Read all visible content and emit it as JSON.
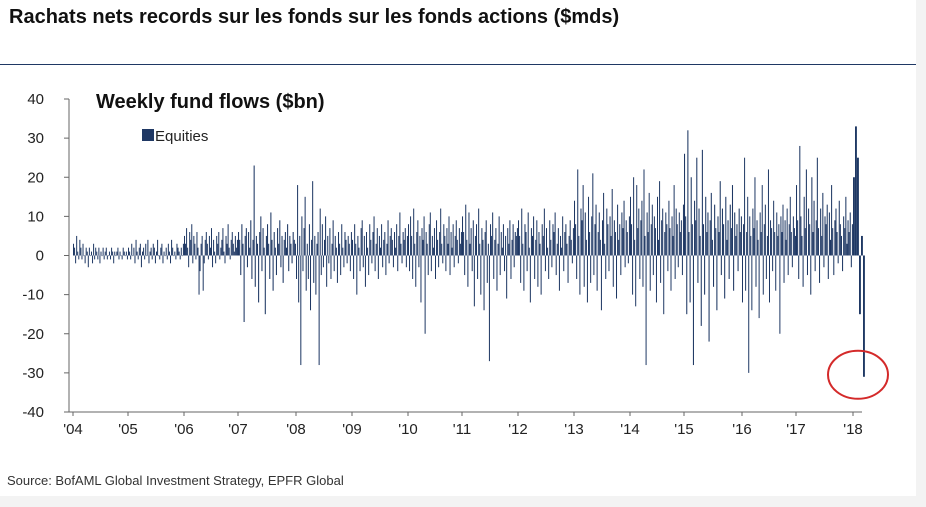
{
  "header": {
    "title": "Rachats nets records sur les fonds sur les fonds actions ($mds)"
  },
  "footer": {
    "source": "Source: BofAML Global Investment Strategy, EPFR Global"
  },
  "colors": {
    "bar": "#1f3864",
    "highlight": "#d42a2a",
    "axis": "#666666"
  },
  "chart_data": {
    "type": "bar",
    "title": "Weekly fund flows ($bn)",
    "xlabel": "",
    "ylabel": "",
    "ylim": [
      -40,
      40
    ],
    "yticks": [
      40,
      30,
      20,
      10,
      0,
      -10,
      -20,
      -30,
      -40
    ],
    "xticks": [
      "'04",
      "'05",
      "'06",
      "'07",
      "'08",
      "'09",
      "'10",
      "'11",
      "'12",
      "'13",
      "'14",
      "'15",
      "'16",
      "'17",
      "'18"
    ],
    "grid": false,
    "legend": "top-left",
    "highlight": {
      "x": "'18",
      "y": -31,
      "shape": "circle"
    },
    "series": [
      {
        "name": "Equities",
        "years": [
          {
            "label": "'04",
            "values": [
              3,
              2,
              -2,
              5,
              1,
              -1,
              4,
              2,
              -1,
              3,
              0,
              -2,
              2,
              1,
              -3,
              2,
              0,
              1,
              -2,
              3,
              -1,
              2,
              1,
              -1,
              2,
              -2,
              1,
              0,
              2,
              -1,
              1,
              2,
              -1,
              0,
              1,
              -1,
              2,
              1,
              -2,
              1,
              0,
              1,
              2,
              -1,
              1,
              0,
              -1,
              2,
              1,
              0,
              1,
              -1
            ]
          },
          {
            "label": "'05",
            "values": [
              2,
              1,
              -1,
              3,
              0,
              2,
              -2,
              4,
              1,
              -1,
              2,
              3,
              -3,
              1,
              2,
              -1,
              3,
              0,
              4,
              -2,
              1,
              2,
              -1,
              3,
              2,
              -2,
              1,
              4,
              0,
              -1,
              2,
              3,
              -2,
              1,
              0,
              2,
              -1,
              3,
              1,
              -2,
              4,
              2,
              0,
              1,
              -1,
              3,
              2,
              1,
              -1,
              2,
              0,
              3
            ]
          },
          {
            "label": "'06",
            "values": [
              5,
              3,
              7,
              2,
              -3,
              6,
              4,
              8,
              -2,
              5,
              3,
              -1,
              6,
              2,
              -10,
              -4,
              3,
              5,
              -9,
              -2,
              4,
              6,
              3,
              -1,
              5,
              2,
              7,
              -3,
              4,
              1,
              -2,
              5,
              3,
              6,
              -1,
              2,
              4,
              7,
              1,
              -2,
              5,
              3,
              8,
              2,
              -1,
              4,
              6,
              3,
              1,
              5,
              2,
              4
            ]
          },
          {
            "label": "'07",
            "values": [
              6,
              4,
              -5,
              8,
              3,
              -17,
              5,
              7,
              -3,
              6,
              2,
              9,
              -6,
              4,
              23,
              -8,
              5,
              3,
              -12,
              6,
              10,
              -4,
              7,
              2,
              -15,
              5,
              8,
              3,
              -6,
              11,
              4,
              -9,
              6,
              2,
              -5,
              7,
              3,
              9,
              -3,
              5,
              -7,
              4,
              6,
              2,
              8,
              -4,
              5,
              3,
              -2,
              6,
              4,
              3
            ]
          },
          {
            "label": "'08",
            "values": [
              -6,
              18,
              -12,
              5,
              -28,
              10,
              -4,
              7,
              15,
              -9,
              3,
              -6,
              8,
              -14,
              4,
              19,
              -7,
              5,
              -10,
              3,
              6,
              -28,
              12,
              -5,
              8,
              -3,
              4,
              10,
              -8,
              5,
              -2,
              7,
              -6,
              3,
              9,
              -4,
              5,
              2,
              -7,
              6,
              3,
              -5,
              8,
              2,
              -3,
              6,
              4,
              -2,
              5,
              3,
              -4,
              6
            ]
          },
          {
            "label": "'09",
            "values": [
              4,
              -6,
              8,
              3,
              -10,
              5,
              2,
              -4,
              7,
              9,
              -3,
              5,
              -8,
              6,
              2,
              -5,
              8,
              4,
              -2,
              6,
              10,
              -4,
              3,
              7,
              -6,
              5,
              2,
              8,
              -3,
              4,
              6,
              -5,
              3,
              9,
              -2,
              5,
              7,
              4,
              -3,
              6,
              2,
              8,
              -4,
              5,
              11,
              3,
              -2,
              6,
              4,
              7,
              -3,
              5
            ]
          },
          {
            "label": "'10",
            "values": [
              8,
              -4,
              10,
              5,
              -6,
              12,
              3,
              -8,
              6,
              9,
              -3,
              5,
              -12,
              7,
              4,
              10,
              -20,
              6,
              3,
              -5,
              8,
              11,
              -4,
              5,
              2,
              7,
              -6,
              9,
              4,
              -3,
              6,
              12,
              3,
              -2,
              8,
              5,
              -4,
              7,
              3,
              10,
              -5,
              6,
              2,
              8,
              -3,
              5,
              9,
              4,
              -2,
              7,
              3,
              6
            ]
          },
          {
            "label": "'11",
            "values": [
              10,
              6,
              -5,
              13,
              4,
              -8,
              11,
              3,
              7,
              -4,
              9,
              -13,
              5,
              8,
              -6,
              12,
              3,
              -10,
              7,
              4,
              -14,
              6,
              9,
              -7,
              3,
              -27,
              8,
              5,
              11,
              -6,
              4,
              7,
              -9,
              3,
              10,
              -5,
              6,
              2,
              8,
              -4,
              5,
              -11,
              7,
              3,
              9,
              -6,
              4,
              8,
              -3,
              6,
              5,
              7
            ]
          },
          {
            "label": "'12",
            "values": [
              9,
              5,
              -7,
              12,
              3,
              -9,
              8,
              6,
              -4,
              11,
              2,
              -12,
              7,
              5,
              10,
              -6,
              4,
              9,
              -8,
              6,
              3,
              -10,
              8,
              5,
              12,
              -4,
              7,
              2,
              -6,
              9,
              4,
              -3,
              8,
              6,
              11,
              -5,
              3,
              7,
              -9,
              5,
              2,
              10,
              -4,
              6,
              8,
              3,
              -7,
              5,
              9,
              4,
              -2,
              7
            ]
          },
          {
            "label": "'13",
            "values": [
              14,
              8,
              -6,
              22,
              5,
              -10,
              12,
              9,
              18,
              -8,
              11,
              4,
              -12,
              15,
              6,
              -7,
              10,
              21,
              -5,
              8,
              13,
              -9,
              6,
              11,
              4,
              -14,
              9,
              16,
              3,
              -6,
              12,
              8,
              -4,
              10,
              5,
              17,
              -8,
              9,
              6,
              -11,
              13,
              4,
              8,
              -5,
              11,
              7,
              14,
              -3,
              9,
              6,
              -2,
              10
            ]
          },
          {
            "label": "'14",
            "values": [
              15,
              8,
              -10,
              20,
              4,
              -13,
              18,
              7,
              12,
              -6,
              9,
              14,
              -8,
              22,
              5,
              -28,
              11,
              6,
              16,
              -9,
              8,
              13,
              -5,
              10,
              7,
              -12,
              15,
              4,
              19,
              -7,
              9,
              12,
              -15,
              6,
              11,
              8,
              -4,
              14,
              7,
              -9,
              10,
              5,
              18,
              -6,
              12,
              8,
              -3,
              11,
              6,
              9,
              -5,
              13
            ]
          },
          {
            "label": "'15",
            "values": [
              26,
              10,
              -15,
              32,
              6,
              -12,
              20,
              8,
              -28,
              14,
              9,
              25,
              -7,
              12,
              5,
              -18,
              27,
              8,
              -10,
              15,
              6,
              11,
              -22,
              9,
              16,
              4,
              -8,
              13,
              7,
              -14,
              10,
              6,
              19,
              -5,
              12,
              8,
              -11,
              15,
              4,
              9,
              -6,
              13,
              7,
              18,
              -9,
              11,
              5,
              8,
              -4,
              12,
              6,
              10
            ]
          },
          {
            "label": "'16",
            "values": [
              -12,
              8,
              25,
              -9,
              6,
              15,
              -30,
              10,
              5,
              -14,
              12,
              7,
              20,
              -8,
              9,
              4,
              -16,
              11,
              6,
              18,
              -10,
              8,
              13,
              -6,
              5,
              22,
              -12,
              9,
              7,
              -4,
              14,
              6,
              -9,
              11,
              5,
              8,
              -20,
              10,
              6,
              13,
              -7,
              9,
              4,
              12,
              -5,
              8,
              15,
              6,
              -3,
              10,
              7,
              5
            ]
          },
          {
            "label": "'17",
            "values": [
              18,
              9,
              -6,
              28,
              10,
              5,
              -8,
              15,
              7,
              22,
              -5,
              12,
              8,
              -10,
              20,
              6,
              14,
              -4,
              9,
              25,
              7,
              -7,
              12,
              5,
              16,
              -3,
              10,
              8,
              13,
              -6,
              11,
              4,
              18,
              7,
              -5,
              9,
              12,
              6,
              -2,
              14,
              8,
              5,
              -4,
              10,
              7,
              15,
              3,
              9,
              6,
              11,
              -3,
              8
            ]
          },
          {
            "label": "'18",
            "values": [
              20,
              33,
              25,
              -15,
              5,
              -31
            ]
          }
        ]
      }
    ]
  }
}
